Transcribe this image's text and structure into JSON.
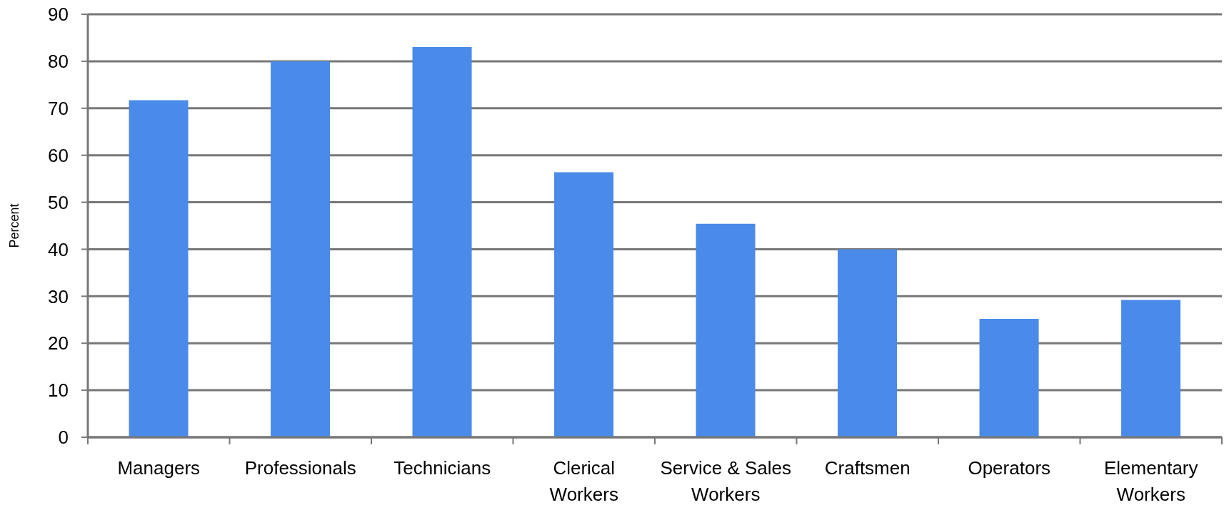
{
  "chart_data": {
    "type": "bar",
    "ylabel": "Percent",
    "categories": [
      "Managers",
      "Professionals",
      "Technicians",
      "Clerical Workers",
      "Service & Sales Workers",
      "Craftsmen",
      "Operators",
      "Elementary Workers"
    ],
    "values": [
      71.7,
      80,
      83,
      56.4,
      45.4,
      40,
      25.2,
      29.2
    ],
    "color": "#4a8ae8",
    "ylim": [
      0,
      90
    ],
    "yticks": [
      0,
      10,
      20,
      30,
      40,
      50,
      60,
      70,
      80,
      90
    ],
    "grid": "y"
  }
}
